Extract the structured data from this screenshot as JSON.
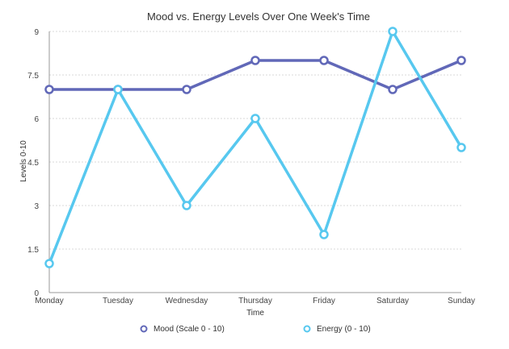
{
  "chart_data": {
    "type": "line",
    "title": "Mood vs. Energy Levels Over One Week's Time",
    "xlabel": "Time",
    "ylabel": "Levels 0-10",
    "categories": [
      "Monday",
      "Tuesday",
      "Wednesday",
      "Thursday",
      "Friday",
      "Saturday",
      "Sunday"
    ],
    "ylim": [
      0,
      9
    ],
    "yticks": [
      "0",
      "1.5",
      "3",
      "4.5",
      "6",
      "7.5",
      "9"
    ],
    "grid": true,
    "legend_position": "bottom",
    "series": [
      {
        "name": "Mood (Scale 0 - 10)",
        "values": [
          7,
          7,
          7,
          8,
          8,
          7,
          8
        ],
        "color": "#6168b8"
      },
      {
        "name": "Energy (0 - 10)",
        "values": [
          1,
          7,
          3,
          6,
          2,
          9,
          5
        ],
        "color": "#57c8ef"
      }
    ]
  }
}
